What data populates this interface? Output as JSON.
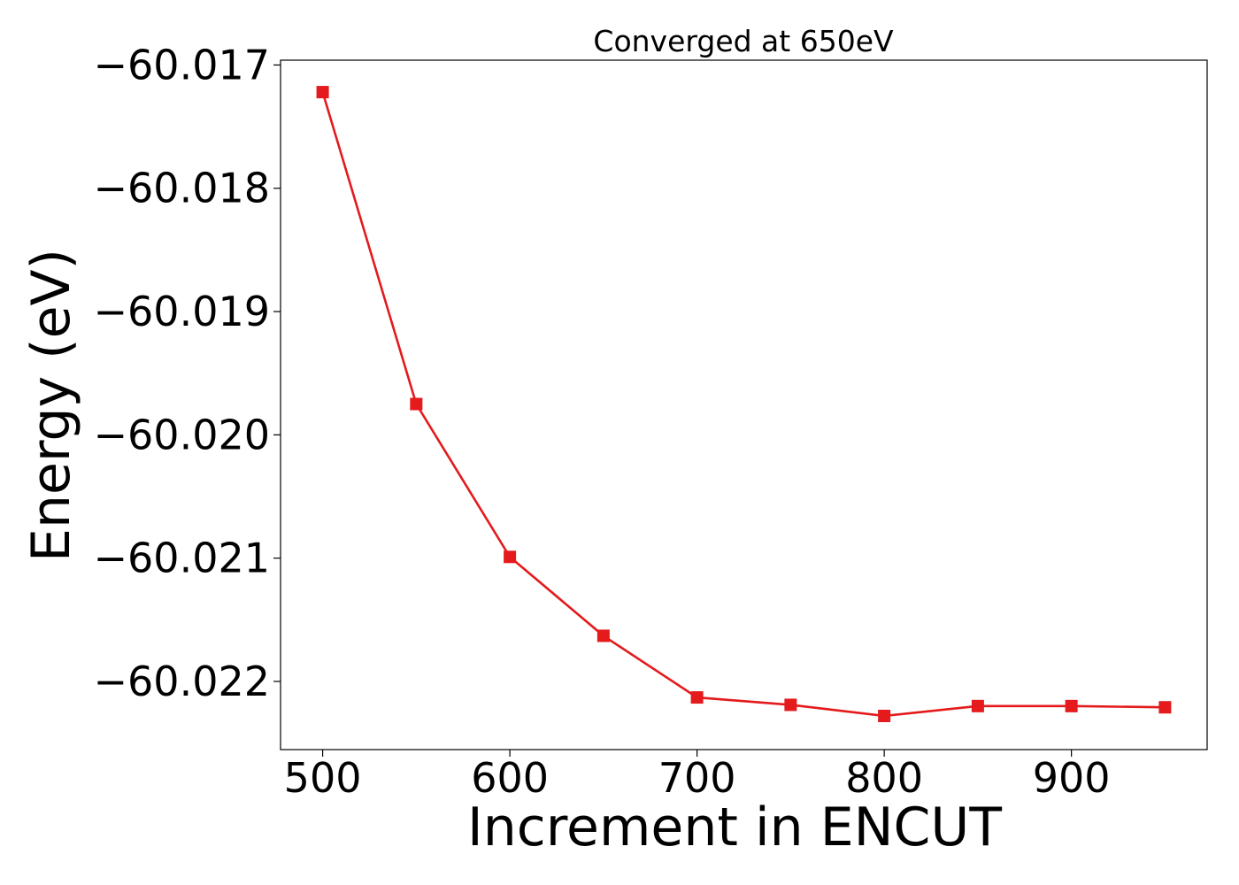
{
  "chart_data": {
    "type": "line",
    "title": "Converged at 650eV",
    "xlabel": "Increment in ENCUT",
    "ylabel": "Energy (eV)",
    "x": [
      500,
      550,
      600,
      650,
      700,
      750,
      800,
      850,
      900,
      950
    ],
    "series": [
      {
        "values": [
          -60.01722,
          -60.01975,
          -60.02099,
          -60.02163,
          -60.02213,
          -60.02219,
          -60.02228,
          -60.0222,
          -60.0222,
          -60.02221
        ],
        "color": "#e41a1c",
        "marker": "square"
      }
    ],
    "xlim": [
      477.5,
      972.5
    ],
    "ylim": [
      -60.022553,
      -60.016961
    ],
    "xticks": [
      500,
      600,
      700,
      800,
      900
    ],
    "xtick_labels": [
      "500",
      "600",
      "700",
      "800",
      "900"
    ],
    "yticks": [
      -60.017,
      -60.018,
      -60.019,
      -60.02,
      -60.021,
      -60.022
    ],
    "ytick_labels": [
      "−60.017",
      "−60.018",
      "−60.019",
      "−60.020",
      "−60.021",
      "−60.022"
    ],
    "grid": false,
    "legend": "none"
  }
}
